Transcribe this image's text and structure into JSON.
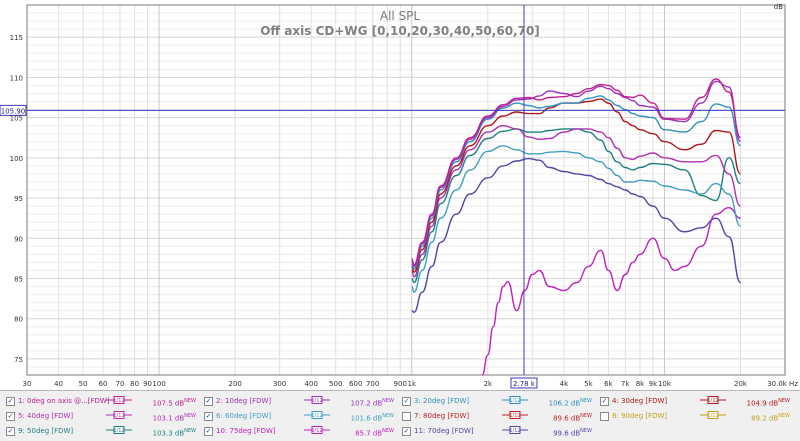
{
  "chart_data": {
    "type": "line",
    "title": "All SPL",
    "subtitle": "Off axis CD+WG [0,10,20,30,40,50,60,70]",
    "ylabel": "dB",
    "xlabel": "Hz",
    "xscale": "log",
    "xlim": [
      30,
      30000
    ],
    "ylim": [
      73,
      119
    ],
    "grid": true,
    "y_ticks": [
      75,
      80,
      85,
      90,
      95,
      100,
      105,
      110,
      115
    ],
    "x_ticks": [
      {
        "v": 30,
        "t": "30"
      },
      {
        "v": 40,
        "t": "40"
      },
      {
        "v": 50,
        "t": "50"
      },
      {
        "v": 60,
        "t": "60"
      },
      {
        "v": 70,
        "t": "70"
      },
      {
        "v": 80,
        "t": "80"
      },
      {
        "v": 90,
        "t": "90"
      },
      {
        "v": 100,
        "t": "100"
      },
      {
        "v": 200,
        "t": "200"
      },
      {
        "v": 300,
        "t": "300"
      },
      {
        "v": 400,
        "t": "400"
      },
      {
        "v": 500,
        "t": "500"
      },
      {
        "v": 600,
        "t": "600"
      },
      {
        "v": 700,
        "t": "700"
      },
      {
        "v": 900,
        "t": "900"
      },
      {
        "v": 1000,
        "t": "1k"
      },
      {
        "v": 2000,
        "t": "2k"
      },
      {
        "v": 4000,
        "t": "4k"
      },
      {
        "v": 5000,
        "t": "5k"
      },
      {
        "v": 6000,
        "t": "6k"
      },
      {
        "v": 7000,
        "t": "7k"
      },
      {
        "v": 8000,
        "t": "8k"
      },
      {
        "v": 9000,
        "t": "9k"
      },
      {
        "v": 10000,
        "t": "10k"
      },
      {
        "v": 20000,
        "t": "20k"
      },
      {
        "v": 30000,
        "t": "30.0k Hz"
      }
    ],
    "cursor": {
      "x_label": "2.78 k",
      "x_value": 2780,
      "y_label": "105.90",
      "y_value": 105.9
    },
    "series": [
      {
        "name": "1: 0deg on axis @...[FDW]",
        "color": "#c02090",
        "x": [
          1000,
          1020,
          1100,
          1200,
          1300,
          1500,
          1700,
          2000,
          2300,
          2600,
          2900,
          3200,
          3500,
          4000,
          4500,
          5000,
          5600,
          6000,
          6500,
          7000,
          7500,
          8000,
          9000,
          10000,
          12000,
          14000,
          16000,
          18000,
          20000
        ],
        "y": [
          87.5,
          86.7,
          89.5,
          93,
          96.5,
          100,
          102.5,
          105.2,
          106.6,
          107.4,
          107.5,
          107.2,
          107.5,
          107.6,
          108,
          108.6,
          109.1,
          109,
          108.4,
          107.6,
          107.5,
          107.8,
          106.8,
          104.9,
          104.8,
          107.5,
          109.8,
          108.2,
          102.5
        ]
      },
      {
        "name": "2: 10deg [FDW]",
        "color": "#a030c0",
        "x": [
          1000,
          1020,
          1100,
          1200,
          1300,
          1500,
          1700,
          2000,
          2300,
          2600,
          2900,
          3200,
          3500,
          4000,
          4500,
          5000,
          5600,
          6000,
          6500,
          7000,
          7500,
          8000,
          9000,
          10000,
          12000,
          14000,
          16000,
          18000,
          20000
        ],
        "y": [
          87.2,
          86.5,
          89.3,
          92.8,
          96.3,
          99.8,
          102.3,
          105,
          106.4,
          107.2,
          107.3,
          107.7,
          108.3,
          108,
          107.6,
          108.3,
          108.9,
          108.6,
          108,
          107.5,
          107.1,
          106.5,
          106.3,
          104.8,
          104.5,
          106.8,
          109.5,
          108.8,
          102
        ]
      },
      {
        "name": "3: 20deg [FDW]",
        "color": "#3090c0",
        "x": [
          1000,
          1020,
          1100,
          1200,
          1300,
          1500,
          1700,
          2000,
          2300,
          2600,
          2900,
          3200,
          3500,
          4000,
          4500,
          5000,
          5600,
          6000,
          6500,
          7000,
          7500,
          8000,
          9000,
          10000,
          12000,
          14000,
          16000,
          18000,
          20000
        ],
        "y": [
          86.8,
          86.2,
          89,
          92.5,
          96,
          99.5,
          102,
          104.8,
          106.2,
          106.8,
          106.5,
          106.2,
          106.4,
          106.8,
          106.8,
          107.4,
          107.7,
          107.2,
          106.5,
          106,
          105.5,
          105.2,
          105,
          103.5,
          103.2,
          104.5,
          106.7,
          106.3,
          101.5
        ]
      },
      {
        "name": "4: 30deg [FDW]",
        "color": "#b01818",
        "x": [
          1000,
          1020,
          1100,
          1200,
          1300,
          1500,
          1700,
          2000,
          2300,
          2600,
          2900,
          3200,
          3500,
          4000,
          4500,
          5000,
          5600,
          6000,
          6500,
          7000,
          7500,
          8000,
          9000,
          10000,
          12000,
          14000,
          16000,
          18000,
          20000
        ],
        "y": [
          86.5,
          85.8,
          88.6,
          92,
          95.5,
          99,
          101.5,
          104,
          105.2,
          105.7,
          105.5,
          105.5,
          106.2,
          106.8,
          106.8,
          107,
          107.3,
          106.8,
          105.7,
          104.5,
          104,
          103.5,
          103,
          102,
          101,
          101.7,
          103.4,
          103.2,
          98
        ]
      },
      {
        "name": "5: 40deg [FDW]",
        "color": "#b030b0",
        "x": [
          1000,
          1020,
          1100,
          1200,
          1300,
          1500,
          1700,
          2000,
          2300,
          2600,
          2900,
          3200,
          3500,
          4000,
          4500,
          5000,
          5600,
          6000,
          6500,
          7000,
          7500,
          8000,
          9000,
          10000,
          12000,
          14000,
          16000,
          18000,
          20000
        ],
        "y": [
          86,
          85.2,
          88,
          91.5,
          95,
          98.5,
          101,
          103.2,
          104,
          103.6,
          102.6,
          102.3,
          102.4,
          103.2,
          103.6,
          103.6,
          103.2,
          102.5,
          101.2,
          100,
          99.8,
          100.2,
          100.6,
          100,
          99.5,
          99.5,
          100.3,
          98,
          94
        ]
      },
      {
        "name": "6: 60deg [FDW]",
        "color": "#40a0c0",
        "x": [
          1000,
          1020,
          1100,
          1200,
          1300,
          1500,
          1700,
          2000,
          2300,
          2600,
          2900,
          3200,
          3500,
          4000,
          4500,
          5000,
          5600,
          6000,
          6500,
          7000,
          7500,
          8000,
          9000,
          10000,
          12000,
          14000,
          16000,
          18000,
          20000
        ],
        "y": [
          84,
          83.3,
          86,
          89.5,
          92.5,
          96,
          98.5,
          100.8,
          101.5,
          101,
          100.5,
          100.5,
          100.7,
          100.8,
          100.6,
          100,
          99.5,
          98.7,
          97.8,
          97,
          97,
          97.2,
          97.1,
          96.5,
          96,
          95.5,
          96.8,
          95.5,
          91.5
        ]
      },
      {
        "name": "7: 80deg [FDW]",
        "color": "#c02020",
        "x": [],
        "y": []
      },
      {
        "name": "8: 90deg [FDW]",
        "color": "#c0a020",
        "x": [],
        "y": []
      },
      {
        "name": "9: 50deg [FDW]",
        "color": "#208080",
        "x": [
          1000,
          1020,
          1100,
          1200,
          1300,
          1500,
          1700,
          2000,
          2300,
          2600,
          2900,
          3200,
          3500,
          4000,
          4500,
          5000,
          5600,
          6000,
          6500,
          7000,
          7500,
          8000,
          9000,
          10000,
          12000,
          14000,
          16000,
          18000,
          20000
        ],
        "y": [
          85,
          84.5,
          87.3,
          90.8,
          94.3,
          97.8,
          100.3,
          102.4,
          103.3,
          103.6,
          103.2,
          103.2,
          103.4,
          103.6,
          103.6,
          103.2,
          102.2,
          100.8,
          99.5,
          98.8,
          98.5,
          98.8,
          99.3,
          99.2,
          98.5,
          95.3,
          94.7,
          100,
          96.8
        ]
      },
      {
        "name": "10: 75deg [FDW]",
        "color": "#c020c0",
        "x": [
          1900,
          2000,
          2100,
          2200,
          2300,
          2400,
          2600,
          2800,
          3000,
          3200,
          3500,
          4000,
          4500,
          5000,
          5600,
          6000,
          6500,
          7000,
          7500,
          8000,
          9000,
          10000,
          11000,
          12000,
          14000,
          16000,
          18000,
          20000
        ],
        "y": [
          73,
          75.5,
          79,
          82,
          84,
          84.6,
          81,
          83.5,
          85.5,
          86,
          84,
          83.5,
          84.5,
          86.5,
          88.5,
          86,
          83.5,
          85.5,
          87,
          88,
          90,
          87.5,
          86,
          86.5,
          89,
          93,
          93.8,
          92.5
        ]
      },
      {
        "name": "11: 70deg [FDW]",
        "color": "#5048a8",
        "x": [
          1000,
          1020,
          1100,
          1200,
          1300,
          1500,
          1700,
          2000,
          2300,
          2600,
          2900,
          3200,
          3500,
          4000,
          4500,
          5000,
          5600,
          6000,
          6500,
          7000,
          7500,
          8000,
          9000,
          10000,
          12000,
          14000,
          16000,
          18000,
          20000
        ],
        "y": [
          81,
          80.8,
          83.3,
          86.5,
          89.5,
          93,
          95.5,
          97.5,
          99,
          99.6,
          99.9,
          99.7,
          98.8,
          98.3,
          98,
          97.8,
          97.3,
          96.8,
          96.4,
          96,
          95.5,
          95.2,
          94,
          92.5,
          90.8,
          91.3,
          92.5,
          90.2,
          84.5
        ]
      }
    ]
  },
  "legend": {
    "items": [
      {
        "name": "1: 0deg on axis @...[FDW]",
        "checked": true,
        "color": "#c02090",
        "value": "107.5 dB",
        "sup": "NEW"
      },
      {
        "name": "2: 10deg [FDW]",
        "checked": true,
        "color": "#a030c0",
        "value": "107.2 dB",
        "sup": "NEW"
      },
      {
        "name": "3: 20deg [FDW]",
        "checked": true,
        "color": "#3090c0",
        "value": "106.2 dB",
        "sup": "NEW"
      },
      {
        "name": "4: 30deg [FDW]",
        "checked": true,
        "color": "#b01818",
        "value": "104.9 dB",
        "sup": "NEW"
      },
      {
        "name": "5: 40deg [FDW]",
        "checked": true,
        "color": "#b030b0",
        "value": "103.1 dB",
        "sup": "NEW"
      },
      {
        "name": "6: 60deg [FDW]",
        "checked": true,
        "color": "#40a0c0",
        "value": "101.6 dB",
        "sup": "NEW"
      },
      {
        "name": "7: 80deg [FDW]",
        "checked": false,
        "color": "#c02020",
        "value": "89.6 dB",
        "sup": "NEW"
      },
      {
        "name": "8: 90deg [FDW]",
        "checked": false,
        "color": "#c0a020",
        "value": "89.2 dB",
        "sup": "NEW"
      },
      {
        "name": "9: 50deg [FDW]",
        "checked": true,
        "color": "#208080",
        "value": "103.3 dB",
        "sup": "NEW"
      },
      {
        "name": "10: 75deg [FDW]",
        "checked": true,
        "color": "#c020c0",
        "value": "85.7 dB",
        "sup": "NEW"
      },
      {
        "name": "11: 70deg [FDW]",
        "checked": true,
        "color": "#5048a8",
        "value": "99.6 dB",
        "sup": "NEW"
      }
    ],
    "smoothing_label": "1/12"
  }
}
